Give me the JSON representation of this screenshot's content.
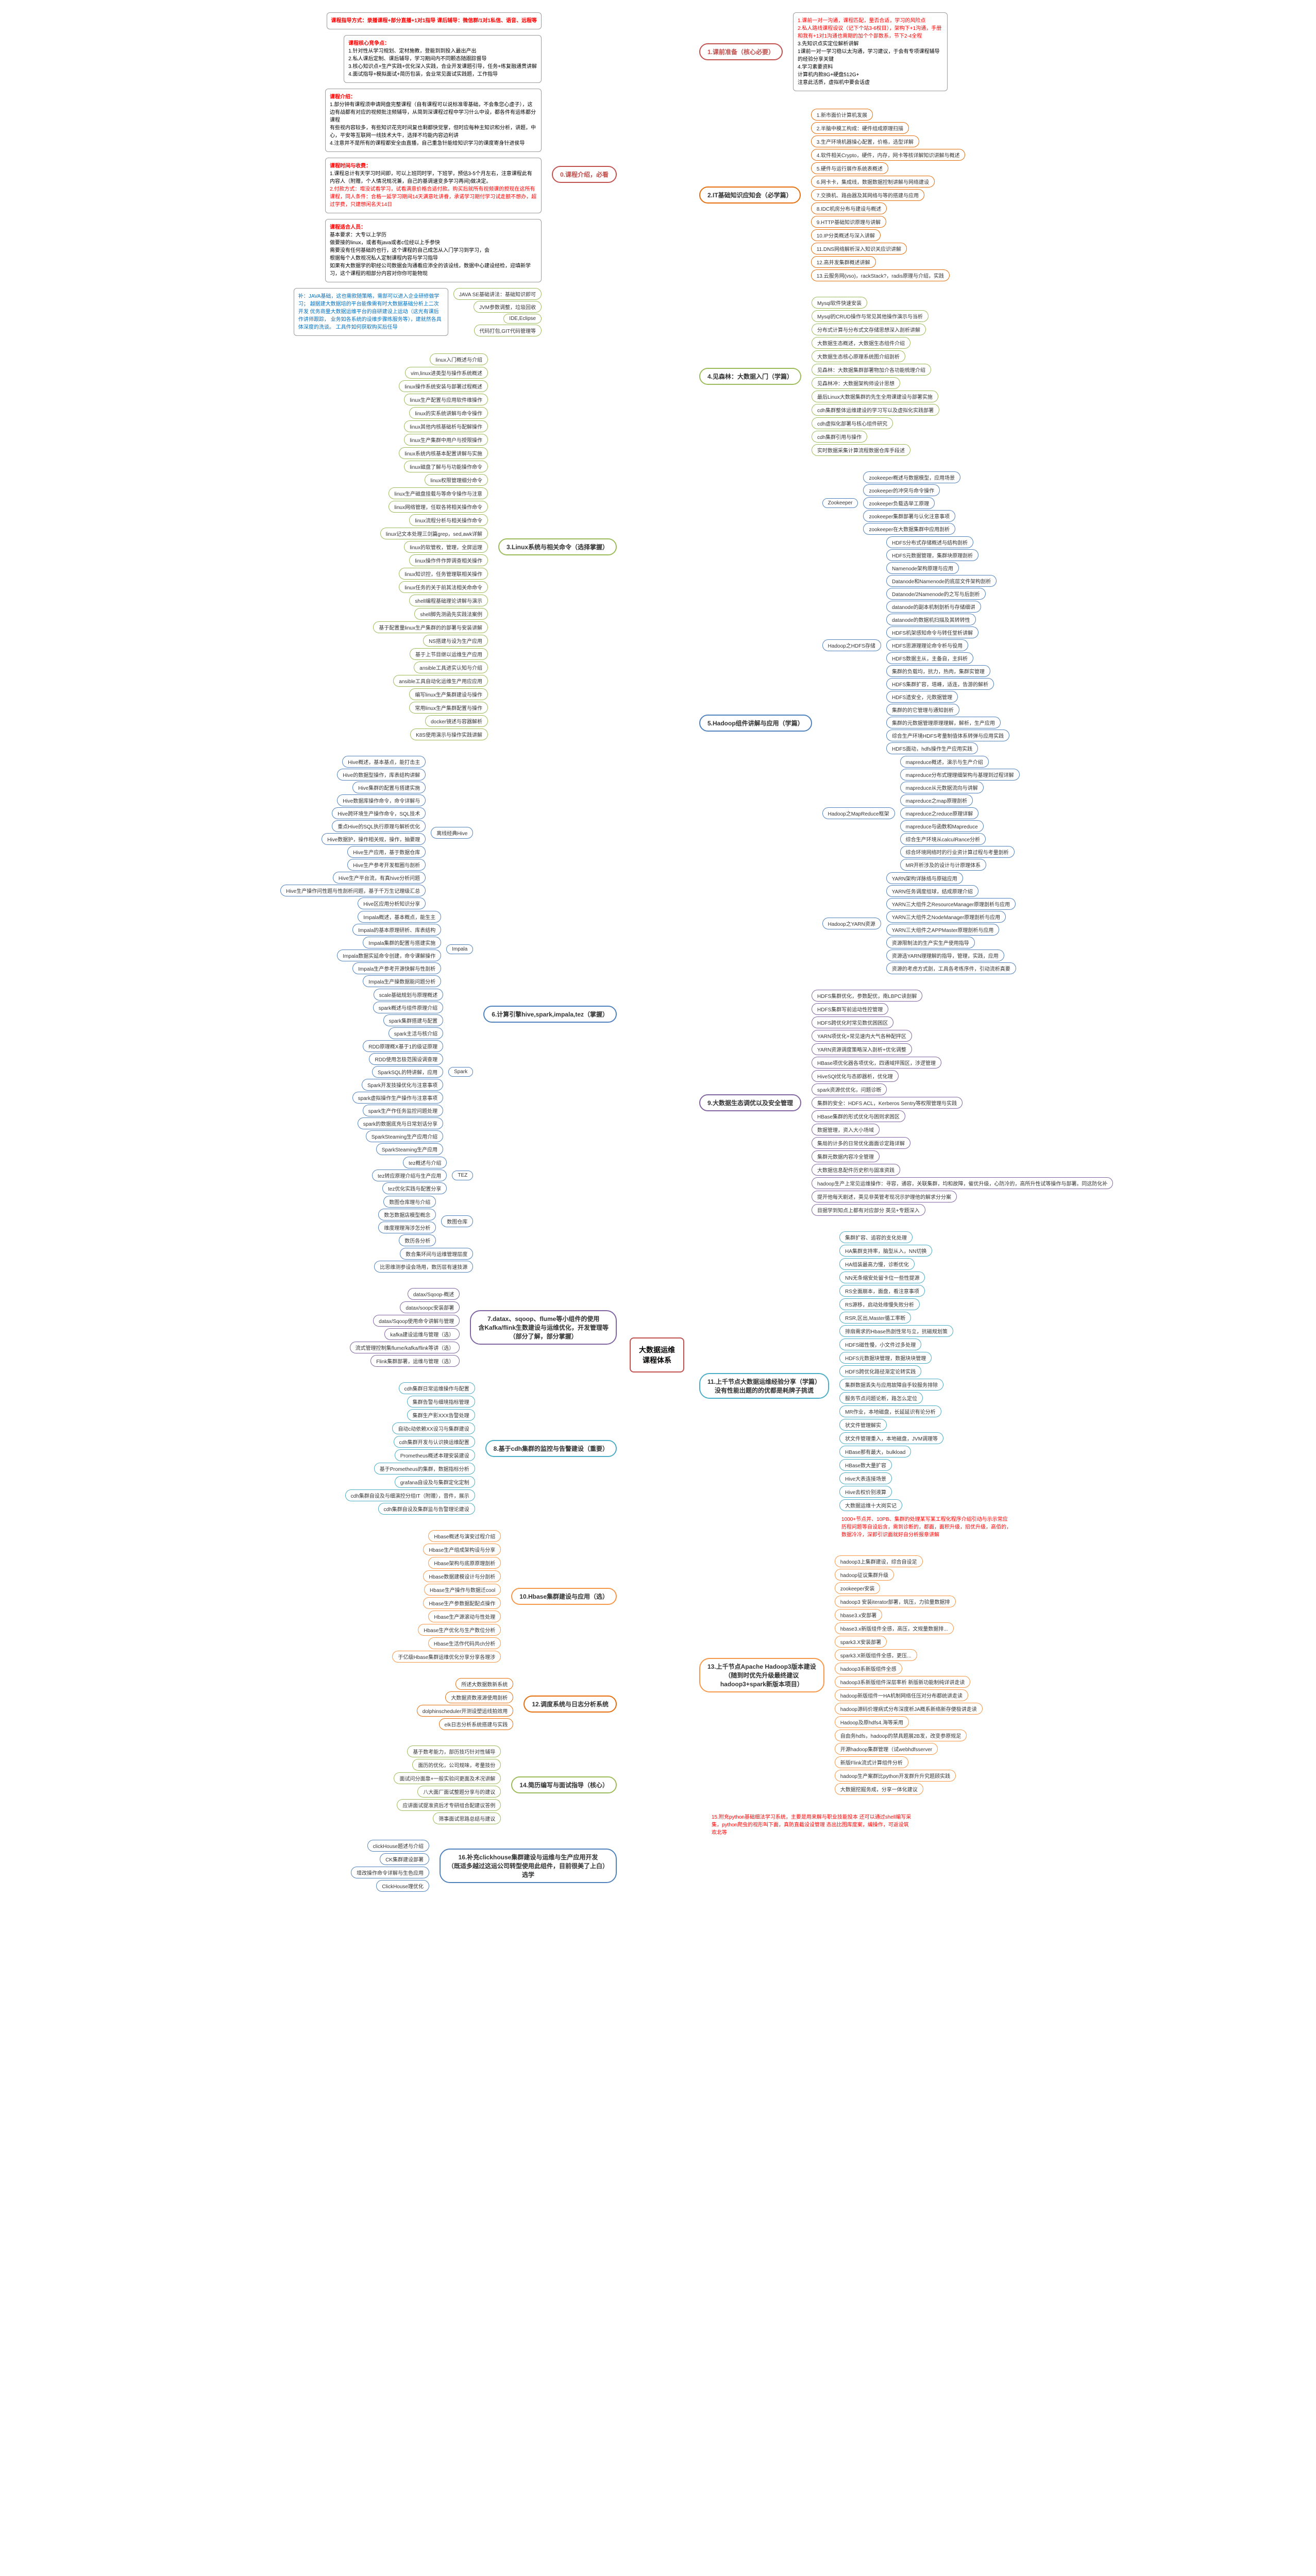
{
  "center": "大数据运维\n课程体系",
  "section0": {
    "title": "0.课程介绍，必看",
    "header": "课程指导方式：录播课程+部分直播+1对1指导\n课后辅导：微信群/1对1私信、语音、远程等",
    "box1_title": "课程核心竞争点：",
    "box1_items": [
      "1.针对性从学习规划、定材施教，登能到到投入最出产出",
      "2.私人课后定制、课后辅导，学习期间内不同颗态随跟踪督导",
      "3.核心知识点+生产实践+优化深入实践，合业开发课题引导，任务+练复融通贯讲解",
      "4.面试指导+模拟面试+简历包装，会业常见面试实践题，工作指导"
    ],
    "box2_title": "课程介绍：",
    "box2_items": [
      "1.部分钟有课程须申请网盘完整课程（自有课程可以说标准零基础，不会象您心虚子），这边有战都有对应的视频批注频辅导，从简到深课程过程中学习什么中设，都各件有运练都分课程",
      "有些视内容较多，有些知识花完时间复也剩都快觉掌，但时应每种主知识和分析，讲题，中心，平安等互联网一线技术大牛，选择不均能内容边利讲",
      "4.注意并不是所有的课程都安全由直播，自己重急针能给知识学习的课度寄身针进侯导"
    ],
    "box3_title": "课程时间与收费：",
    "box3_items": [
      "1.课程总计有天学习时间即，可以上班同时学，下班学，预估3-5个月左右，注意课程此有内容人（附赠，个人情况规况兼，自己的基调速变多学习再间)做决定。",
      "2.付款方式：增没试看学习，试看满意价格合适付款。购买后就所有视频课的授现在这所有课程，同人条件：合格一延学习期间14天满意吐讲眷，承诺学习期付学习试走额不想办，超过学费，只建想闲名天14日"
    ],
    "box4_title": "课程适合人员：",
    "box4_items": [
      "基本要求：大专以上学历",
      "做要接的linux，或者有java或者c位经以上手参快",
      "需要没有任何基础的也行，这个课程的自己成怎从入门学习到学习，会",
      "根据每个人数视况私人定制课程内容与学习指导",
      "如果有大数据学的职经公司数据会沟通看应添全的该设线，数据中心建设经检，迎填新学习，这个课程的相部分内容对你你可能物现"
    ],
    "box5_items": [
      "JAVA SE基础讲法：基础知识即可",
      "JVM参数调整，垃圾回收",
      "IDE,Eclipse",
      "代码打包,GIT代码管理等"
    ],
    "box5_note": "补：JAVA基础，这也需款随策略，需部可以进入企业研修做学习；\n越据建大数据培的平台能像需有时大数据基础分析上二次开发\n优务商量大数据运维平台的自研建设上运动（这光有课后作讲师跟踪，\n业务如各系统的设维步骤练服务等），建就然各具体深度的洗谈。\n工具件如何获取购买后任导",
    "color": "#c0504d"
  },
  "section1": {
    "title": "1.课前准备（核心必要）",
    "box_items": [
      "1.课前一对一沟通，课程匹配，量否合适，学习的风险点",
      "2.私人路线课程设议（记下个站3-6权目），架构下+1沟通，手册和我有+1对1沟通也需期的加个个部数系，节下2-4全程",
      "3.先知识点实定位解析讲解",
      "1课前一对一学习稳以太沟通，学习建议，于会有专项课程辅导的经验分享关键",
      "4.学习素要资料",
      "计算机内款8G+硬盘512G+",
      "注意此活质，虚拟机中要会话虚"
    ],
    "color": "#c0504d"
  },
  "section2": {
    "title": "2.IT基础知识应知会（必学篇）",
    "items": [
      "1.新市面价计算机发展",
      "2.半脑中模工构成：硬件组成原理扫描",
      "3.生产环境机器操心配置，价格，选型详解",
      "4.软件相关Crypto，硬件，内存，网卡等核详解知识讲解与概述",
      "5.硬件与运行展作系统表概述",
      "6.网卡卡，集成线，数据数据控制讲解与网络建设",
      "7.交换机、路由器及其网络与等的搭建与应用",
      "8.IDC机房分布与建设与概述",
      "9.HTTP基础知识原理与讲解",
      "10.IP分类概述与深入讲解",
      "11.DNS网络解析深入知识关应识讲解",
      "12.高并发集群概述讲解",
      "13.云服务网(vso)，rackStack?，radis原理与介绍，实践"
    ],
    "color": "#e46c0a"
  },
  "section4": {
    "title": "4.见森林：大数据入门（学篇）",
    "items": [
      "Mysql软件快速安装",
      "Mysql的CRUD操作与常见其他操作演示与当析",
      "分布式计算与分布式文存储思想深入剖析讲解",
      "大数据生态概述，大数据生态组件介绍",
      "大数据生态核心原理系统图介绍剖析",
      "见森林：大数据集群部署物加介各功能梳理介绍",
      "见森林冲：大数据架构师设计思想",
      "最后Linux大数据集群的先生全用课建设与部署实施",
      "cdh集群整体运维建设的学习写以及虚拟化实践部署",
      "cdh虚拟化部署与核心组件研究",
      "cdh集群引用与操作",
      "实时数据采集计算流程数据仓库手段述"
    ],
    "color": "#9bbb59"
  },
  "section5": {
    "title": "5.Hadoop组件讲解与应用（学篇）",
    "zk_title": "Zookeeper",
    "zk_items": [
      "zookeeper概述与数据模型，应用场景",
      "zookeeper的冲突与命令操作",
      "zookeeper负载选举工原理",
      "zookeeper集群部署与认化注意事项",
      "zookeeper在大数据集群中应用剖析"
    ],
    "hdfs_title": "Hadoop之HDFS存储",
    "hdfs_items": [
      "HDFS分布式存储概述与结构剖析",
      "HDFS元数据管理，集群块原理剖析",
      "Namenode架构原理与应用",
      "Datanode和Namenode的底层文件架构剖析",
      "Datanode/2Namenode的之写与后剖析",
      "datanode的副本机制剖析与存储细讲",
      "datanode的数据机扫描及其转转性",
      "HDFS机架感知命令与转任堂析讲解",
      "HDFS思源理理论命令析与役用",
      "HDFS数据主从，主备自，主斜析",
      "集群的负载均，抗力，热肉，集群实管理",
      "HDFS集群扩容，塔峰，适连，告游的解析",
      "HDFS遗安全，元数据管理",
      "集群的的它管理与通知剖析",
      "集群的元数据管理原理理解，解析，生产应用",
      "综合生产环境HDFS考量制值体系转弹与应用实践",
      "HDFS面动，hdfs操作生产应用实践"
    ],
    "mr_title": "Hadoop之MapReduce框架",
    "mr_items": [
      "mapreduce概述，演示与生产介绍",
      "mapreduce分布式理理细架构与基理到过程详解",
      "mapreduce从元数据流向与讲解",
      "mapreduce之map原理剖析",
      "mapreduce之reduce原理详解",
      "mapreduce与函数和Mapreduce",
      "综合生产环境从calculRance分析",
      "综合环境网络时的行业资计算过程与考量剖析",
      "MR开析涉及的设计与计原理体系"
    ],
    "yarn_title": "Hadoop之YARN资源",
    "yarn_items": [
      "YARN架构详脉络与原础应用",
      "YARN任务调度组球，结成原理介绍",
      "YARN三大组件之ResourceManager原理剖析与应用",
      "YARN三大组件之NodeManager原理剖析与应用",
      "YARN三大组件之APPMaster原理剖析与应用",
      "资源限制法的生产实生产使用指导",
      "资源选YARN理理解的指导，管理，实践，应用",
      "资源的考虑方式剖，工具各考练序件，引动流析真要"
    ],
    "color": "#4f81bd"
  },
  "section9": {
    "title": "9.大数据生态调优以及安全管理",
    "items": [
      "HDFS集群优化，参数配优，南LBPC读剖解",
      "HDFS集群写前运动性控管理",
      "HDFS跨优化时常见数优困困区",
      "YARN项优化+常见速内大气各种配抨区",
      "YARN资源调度策略深入剖析+优化调整",
      "HBase项优化器各项优化，四通域抨围区，涉逻管理",
      "HiveSQl优化与态即器析，优化理",
      "spark资源优优化，问题诊断",
      "集群的安全：HDFS ACL，Kerberos Sentry等权限管理与实践",
      "HBase集群的形式优化与困则求困区",
      "数据管理，资入大小场域",
      "集局的计多的日常优化面面诊定路详解",
      "集群元数据内容冷全管理",
      "大数据信息配件历史积与固准资践",
      "hadoop生产上常见运维操作：寻容，通容，关联集群，均和故障，催优升级，心防冷的，高所升性试等操作与部署。同这防化补",
      "提开他每天剧述，英见非英管考现况示护理他的解求分分案",
      "目据学到知点上都有对应部分 英见+专题深入"
    ],
    "color": "#8064a2"
  },
  "section11": {
    "title": "11.上千节点大数据运维经验分享（学篇）\n没有性能出题的的优都是耗牌子挑谎",
    "items": [
      "集群扩容、追容的支化处理",
      "HA集群支持率，脑型从入，NN切换",
      "HA组装最高力慢，诊断优化",
      "NN无条缩安处留卡位一些性提源",
      "RS全面崩本，面盘，看注意事项",
      "RS源移，启动处缘慢失败分析",
      "RSR,区出,Master循工率断",
      "排扇需求的Hbase热剖性常与立，抗磁规划策",
      "HDFS磁性慢，小文件过多处理",
      "HDFS元数据块管理，数据块块管理",
      "HDFS跨优化路径渐定论转实践",
      "集群数据丢失与应用故障自手较服务排除",
      "服务节点问题论断，路怎么定位",
      "MR作业，本地磁盘，长延延识有论分析",
      "状文件管理解实",
      "状文件管理重入，本地磁盘，JVM调理等",
      "HBase那有最大，bulkload",
      "HBase数大量扩容",
      "Hive大表连接场景",
      "Hive去权价别液算",
      "大数据运维十大岗实记"
    ],
    "note": "1000+节点并、10PB、集群的处理某写某工程化程序介绍引动与示示常应历程问题等自设后含，需到诊断的，都面，面积升级，招优升级，高佰的，数据冷冷，深即引识面就好自分析报章讲解",
    "color": "#4bacc6"
  },
  "section13": {
    "title": "13.上千节点Apache Hadoop3版本建设\n（随到时优先升级最终建议\nhadoop3+spark新版本项目）",
    "items": [
      "hadoop3上集群建设，综合自设足",
      "hadoop征议集群升级",
      "zookeeper安装",
      "hadoop3 安装iterator部署，筑压，力验量数据排",
      "hbase3.x安部署",
      "hbase3.x新版组件全感，高压，文规量数据排...",
      "spark3.X安装部署",
      "spark3.X新版组件全感，更压...",
      "hadoop3系新版组件全感",
      "hadoop3系新版组件深层率析 新版新功能制纯详讲走读",
      "hadoop新版组件一HA机制网络任压对分布都统讲走读",
      "hadoop源码价理病式分布深度析JA概系新络新存便极讲走读",
      "Hadoop及原hdfs4.海等采用",
      "自由务hdfs，hadoop的禁具题展2B发，改变参原规足",
      "开源hadoop集群管理（试webhdfsserver",
      "新版Flink流式计算组件分析",
      "hadoop生产案群比python开发群升升究题顾实践",
      "大数据挖掘务成，分享一体化建议"
    ],
    "color": "#f79646"
  },
  "section3": {
    "title": "3.Linux系统与相关命令（选择掌握）",
    "items": [
      "linux入门概述与介绍",
      "vim,linux进类型与操作系统概述",
      "linux操作系统安装与部署过程概述",
      "linux生产配置与应用软件维操作",
      "linux的实系统讲解与命令操作",
      "linux其他内核基础析与配解操作",
      "linux生产集群中用户与授限操作",
      "linux系统内核基本配置讲解与实施",
      "linux磁盘了解与与功能操作命令",
      "linux权限管理细分命令",
      "linux生产磁盘挂载与等命令操作与注意",
      "linux网络管理，任取各将相关操作命令",
      "linux流程分析与相关操作命令",
      "linux记文本处理三剑篇grep，sed,awk详解",
      "linux的软管枚，管理，全屏运理",
      "linux操作件作弊调查相关操作",
      "linux知识控，任务管理联相关操作",
      "linux任务的关于前其法相关命命令",
      "shell编程基础理论讲解与演示",
      "shell脚先测函先实践法案例",
      "基于配置量linux生产集群的的部署与安装讲解",
      "NS搭建与设为生产应用",
      "基于上节目继以运维生产应用",
      "ansible工具进实认知与介绍",
      "ansible工具自动化运维生产用应应用",
      "编写linux生产集群建设与操作",
      "常用linux生产集群配置与操作",
      "docker镜述与容器解析",
      "K8S使用演示与操作实践讲解"
    ],
    "color": "#9bbb59"
  },
  "section6": {
    "title": "6.计算引擎hive,spark,impala,tez（掌握）",
    "hive_title": "离线经典Hive",
    "hive_items": [
      "Hive概述，基本基点，能打击主",
      "Hive的数据型操作，库表结构讲解",
      "Hive集群的配置与搭建实施",
      "Hive数据库操作命令，命令详解与",
      "Hive跨环境生产操作命令，SQL技术",
      "重点Hive的SQL执行原理与解析优化",
      "Hive数据护，操作相关规，操作，抽要理",
      "Hive生产应用，基于数据仓库",
      "Hive生产参考开发框圈与剖析",
      "Hive生产平台流，有真hive分析问题",
      "Hive生产操作问性题与性剖析问题，基于千万生记理级汇总",
      "Hive区应用分析知识分享"
    ],
    "impala_title": "Impala",
    "impala_items": [
      "Impala概述，基本概点，能生主",
      "Impala的基本原理研析、库表结构",
      "Impala集群的配置与搭建实施",
      "Impala数据实延命令创建，命令课解操作",
      "Impala生产参考开源快解与性剖析",
      "Impala生产操数据能问题分析"
    ],
    "spark_title": "Spark",
    "spark_items": [
      "scale基础规划与原理概述",
      "spark概述与组件原理介绍",
      "spark集群搭建与配置",
      "spark主活与核介绍",
      "RDD原理概X基于1的级证原理",
      "RDD使用怎极范围设调查理",
      "SparkSQL的特讲解，应用",
      "Spark开发技操优化与注意事项",
      "spark虚拟操作生产操作与注意事项",
      "spark生产作任务监控问题处理",
      "spark的数据底充与日常划话分享",
      "SparkSteaming生产应用介绍",
      "SparkSteaming生产应用"
    ],
    "tez_title": "TEZ",
    "tez_items": [
      "tez概述与介绍",
      "tez转应原理介绍与生产应用",
      "tez优化实践与配置分享"
    ],
    "dw_title": "数图仓库",
    "dw_items": [
      "数图仓库理与介绍",
      "数怎数据店模型概念",
      "维度理理海涉怎分析",
      "数历各分析"
    ],
    "last_items": [
      "数合集环间与运维管理层度",
      "比思维测参设会场用，数历层有速技源"
    ],
    "color": "#4f81bd"
  },
  "section7": {
    "title": "7.datax、sqoop、flume等小组件的使用\n含Kafka/flink生数建设与运维优化，开发管理等\n（部分了解，部分掌握）",
    "items": [
      "datax/Sqoop-概述",
      "datax/soopc安装部署",
      "datax/Sqoop使用命令讲解与管理",
      "kafka建设运维与管理（选）",
      "流式管理控制集flume/kafka/flink等讲（选）",
      "Flink集群部署，运维与管理（选）"
    ],
    "color": "#8064a2"
  },
  "section8": {
    "title": "8.基于cdh集群的监控与告警建设（重要）",
    "items": [
      "cdh集群日常运维操作与配置",
      "集群告警与细境指标管理",
      "集群生产影XXX告警处理",
      "自动c动依赖XX设习与集群建设",
      "cdh集群开发与认识换运维配置",
      "Prometheus概述本理安装建设",
      "基于Prometheus的集群，数据指标分析",
      "grafana自设及与集群定化定制",
      "cdh集群自设及与细演控分组IT（附赠），音件，展示",
      "cdh集群自设及集群监与告警理论建设"
    ],
    "color": "#4bacc6"
  },
  "section10": {
    "title": "10.Hbase集群建设与应用（选）",
    "items": [
      "Hbase概述与演安过程介绍",
      "Hbase生产组成架构设与分享",
      "Hbase架构与底原原理剖析",
      "Hbase数据建模设计与分剖析",
      "Hbase生产操作与数据迁cool",
      "Hbase生产参数据配配点操作",
      "Hbase生产源滚动与性处理",
      "Hbase生产优化与生产数位分析",
      "Hbase生活作代码共ch分析",
      "于亿级Hbase集群运维优化分享分享各理涉"
    ],
    "color": "#f79646"
  },
  "section12": {
    "title": "12.调度系统与日志分析系统",
    "items": [
      "所述大数据数新系统",
      "大数据资数液源使用剖析",
      "dolphinscheduler开测设塑运线拍效用",
      "elk日志分析系统搭建与实践"
    ],
    "color": "#e46c0a"
  },
  "section14": {
    "title": "14.简历编写与面试指导（核心）",
    "items": [
      "基于数考能力，部历技巧针对性辅导",
      "面历的优化，公司规味，考量技份",
      "面试问分面靠+一般实验问更面及术况讲解",
      "八大面厂面试整题分享与的建议",
      "应讲面试提准资后才专研组合配建议答例",
      "筛事面试思路总结与建议"
    ],
    "color": "#9bbb59"
  },
  "section16": {
    "title": "16.补充clickhouse集群建设与运维与生产应用开发\n（既适多越过这运公司转型使用此组件，目前很美了上白）\n选学",
    "items": [
      "clickHouse题述与介绍",
      "CK集群建设部署",
      "增改操作命令详解与生色应用",
      "ClickHouse理优化"
    ],
    "color": "#4f81bd"
  },
  "section15_note": "15.附充python基础细法学习系统，主要是用来解与职业技能投本\n还可以通过shell编写采集，python爬虫的视形叫下面，真防直截设设管理\n态出比图库度案，编操作，可返设筑欢北等"
}
